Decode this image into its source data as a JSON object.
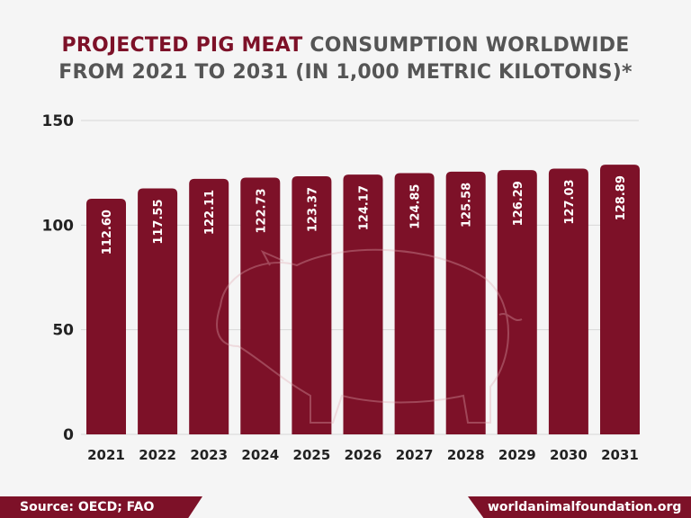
{
  "chart_data": {
    "type": "bar",
    "title_highlight": "PROJECTED PIG MEAT",
    "title_rest_line1": "CONSUMPTION WORLDWIDE",
    "title_line2": "FROM 2021 TO 2031 (IN 1,000 METRIC KILOTONS)*",
    "categories": [
      "2021",
      "2022",
      "2023",
      "2024",
      "2025",
      "2026",
      "2027",
      "2028",
      "2029",
      "2030",
      "2031"
    ],
    "values": [
      112.6,
      117.55,
      122.11,
      122.73,
      123.37,
      124.17,
      124.85,
      125.58,
      126.29,
      127.03,
      128.89
    ],
    "data_labels": [
      "112.60",
      "117.55",
      "122.11",
      "122.73",
      "123.37",
      "124.17",
      "124.85",
      "125.58",
      "126.29",
      "127.03",
      "128.89"
    ],
    "yticks": [
      0,
      50,
      100,
      150
    ],
    "ylim": [
      0,
      150
    ],
    "grid": true,
    "colors": {
      "bar": "#7d1128",
      "highlight": "#7d1128",
      "text": "#555555"
    }
  },
  "footer": {
    "source": "Source: OECD; FAO",
    "site": "worldanimalfoundation.org"
  }
}
